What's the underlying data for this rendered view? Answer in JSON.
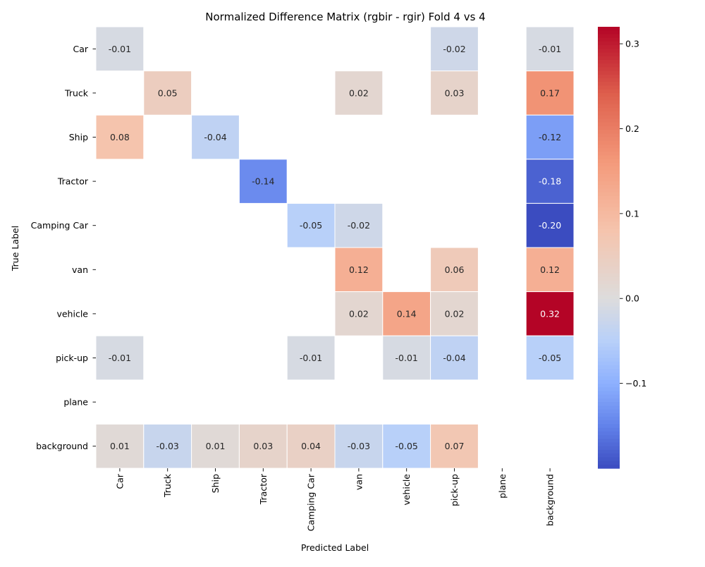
{
  "chart_data": {
    "type": "heatmap",
    "title": "Normalized Difference Matrix (rgbir - rgir) Fold 4 vs 4",
    "xlabel": "Predicted Label",
    "ylabel": "True Label",
    "x_categories": [
      "Car",
      "Truck",
      "Ship",
      "Tractor",
      "Camping Car",
      "van",
      "vehicle",
      "pick-up",
      "plane",
      "background"
    ],
    "y_categories": [
      "Car",
      "Truck",
      "Ship",
      "Tractor",
      "Camping Car",
      "van",
      "vehicle",
      "pick-up",
      "plane",
      "background"
    ],
    "values": [
      [
        -0.01,
        null,
        null,
        null,
        null,
        null,
        null,
        -0.02,
        null,
        -0.01
      ],
      [
        null,
        0.05,
        null,
        null,
        null,
        0.02,
        null,
        0.03,
        null,
        0.17
      ],
      [
        0.08,
        null,
        -0.04,
        null,
        null,
        null,
        null,
        null,
        null,
        -0.12
      ],
      [
        null,
        null,
        null,
        -0.14,
        null,
        null,
        null,
        null,
        null,
        -0.18
      ],
      [
        null,
        null,
        null,
        null,
        -0.05,
        -0.02,
        null,
        null,
        null,
        -0.2
      ],
      [
        null,
        null,
        null,
        null,
        null,
        0.12,
        null,
        0.06,
        null,
        0.12
      ],
      [
        null,
        null,
        null,
        null,
        null,
        0.02,
        0.14,
        0.02,
        null,
        0.32
      ],
      [
        -0.01,
        null,
        null,
        null,
        -0.01,
        null,
        -0.01,
        -0.04,
        null,
        -0.05
      ],
      [
        null,
        null,
        null,
        null,
        null,
        null,
        null,
        null,
        null,
        null
      ],
      [
        0.01,
        -0.03,
        0.01,
        0.03,
        0.04,
        -0.03,
        -0.05,
        0.07,
        null,
        null
      ]
    ],
    "colormap": "coolwarm",
    "center": 0,
    "vmin": -0.2,
    "vmax": 0.32,
    "colorbar_ticks": [
      0.3,
      0.2,
      0.1,
      0.0,
      -0.1
    ],
    "colorbar_tick_labels": [
      "0.3",
      "0.2",
      "0.1",
      "0.0",
      "−0.1"
    ],
    "grid": false
  }
}
